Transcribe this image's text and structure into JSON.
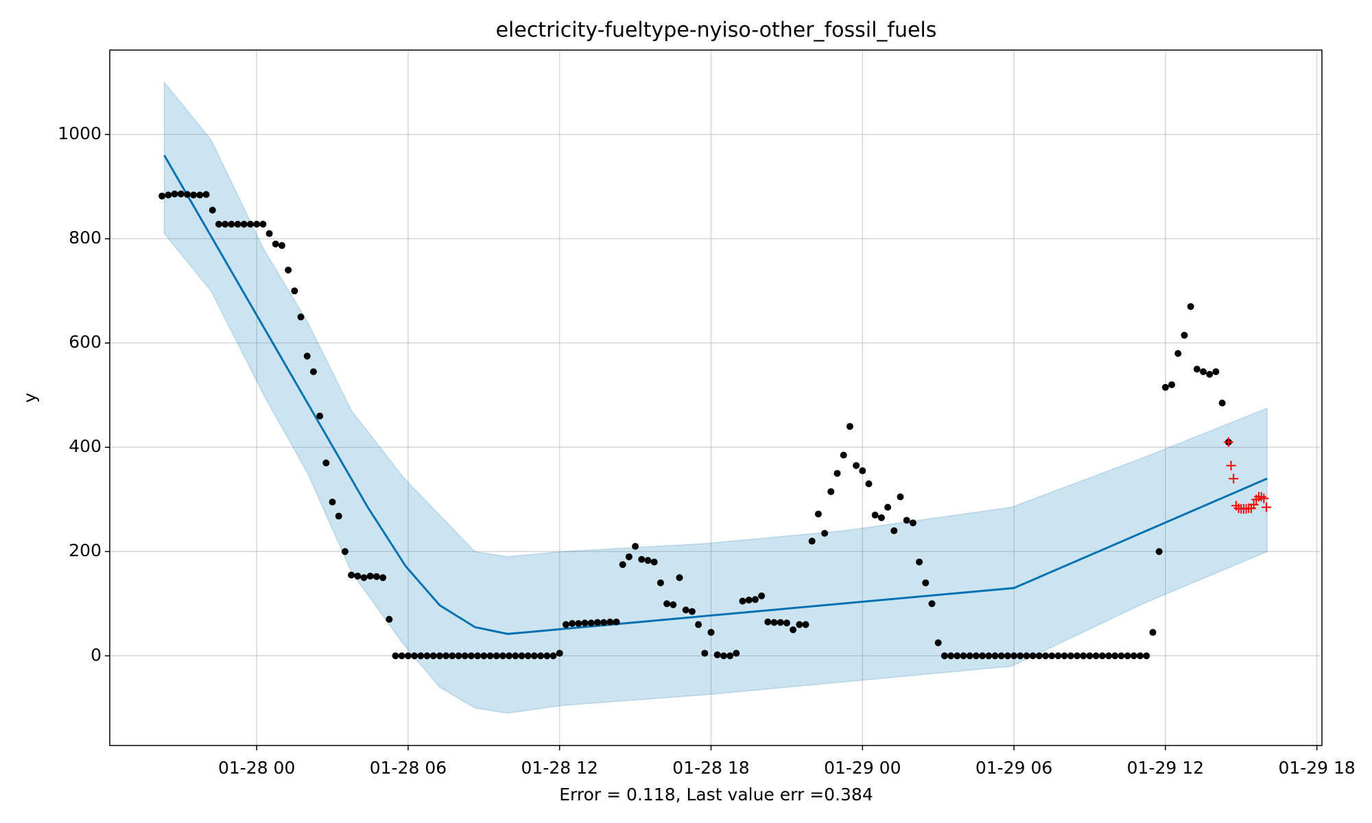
{
  "chart_data": {
    "type": "forecast",
    "title": "electricity-fueltype-nyiso-other_fossil_fuels",
    "xlabel": "Error = 0.118, Last value err =0.384",
    "ylabel": "y",
    "xlim": [
      -5.82,
      42.2
    ],
    "ylim": [
      -172,
      1162
    ],
    "xticks": [
      {
        "value": 0,
        "label": "01-28 00"
      },
      {
        "value": 6,
        "label": "01-28 06"
      },
      {
        "value": 12,
        "label": "01-28 12"
      },
      {
        "value": 18,
        "label": "01-28 18"
      },
      {
        "value": 24,
        "label": "01-29 00"
      },
      {
        "value": 30,
        "label": "01-29 06"
      },
      {
        "value": 36,
        "label": "01-29 12"
      },
      {
        "value": 42,
        "label": "01-29 18"
      }
    ],
    "yticks": [
      0,
      200,
      400,
      600,
      800,
      1000
    ],
    "grid": true,
    "band": {
      "color": "#0072b2",
      "x": [
        -3.66,
        -1.81,
        0.28,
        2.02,
        3.76,
        5.85,
        7.25,
        8.64,
        9.93,
        12.13,
        17.7,
        23.28,
        29.9,
        35.12,
        40.03
      ],
      "upper": [
        1100,
        990,
        780,
        640,
        470,
        340,
        270,
        200,
        190,
        200,
        215,
        240,
        285,
        380,
        475
      ],
      "lower": [
        810,
        700,
        500,
        350,
        160,
        20,
        -60,
        -100,
        -110,
        -95,
        -75,
        -50,
        -20,
        100,
        200
      ]
    },
    "forecast": {
      "color": "#0072b2",
      "x": [
        -3.66,
        4.4,
        5.9,
        7.25,
        8.65,
        9.95,
        30,
        40.03
      ],
      "values": [
        960,
        285,
        172,
        97,
        55,
        42,
        130,
        340
      ]
    },
    "observed": {
      "color": "#000000",
      "x": [
        -3.75,
        -3.5,
        -3.25,
        -3,
        -2.75,
        -2.5,
        -2.25,
        -2,
        -1.75,
        -1.5,
        -1.25,
        -1,
        -0.75,
        -0.5,
        -0.25,
        0,
        0.25,
        0.5,
        0.75,
        1,
        1.25,
        1.5,
        1.75,
        2,
        2.25,
        2.5,
        2.75,
        3,
        3.25,
        3.5,
        3.75,
        4,
        4.25,
        4.5,
        4.75,
        5,
        5.25,
        5.5,
        5.75,
        6,
        6.25,
        6.5,
        6.75,
        7,
        7.25,
        7.5,
        7.75,
        8,
        8.25,
        8.5,
        8.75,
        9,
        9.25,
        9.5,
        9.75,
        10,
        10.25,
        10.5,
        10.75,
        11,
        11.25,
        11.5,
        11.75,
        12,
        12.25,
        12.5,
        12.75,
        13,
        13.25,
        13.5,
        13.75,
        14,
        14.25,
        14.5,
        14.75,
        15,
        15.25,
        15.5,
        15.75,
        16,
        16.25,
        16.5,
        16.75,
        17,
        17.25,
        17.5,
        17.75,
        18,
        18.25,
        18.5,
        18.75,
        19,
        19.25,
        19.5,
        19.75,
        20,
        20.25,
        20.5,
        20.75,
        21,
        21.25,
        21.5,
        21.75,
        22,
        22.25,
        22.5,
        22.75,
        23,
        23.25,
        23.5,
        23.75,
        24,
        24.25,
        24.5,
        24.75,
        25,
        25.25,
        25.5,
        25.75,
        26,
        26.25,
        26.5,
        26.75,
        27,
        27.25,
        27.5,
        27.75,
        28,
        28.25,
        28.5,
        28.75,
        29,
        29.25,
        29.5,
        29.75,
        30,
        30.25,
        30.5,
        30.75,
        31,
        31.25,
        31.5,
        31.75,
        32,
        32.25,
        32.5,
        32.75,
        33,
        33.25,
        33.5,
        33.75,
        34,
        34.25,
        34.5,
        34.75,
        35,
        35.25,
        35.5,
        35.75,
        36,
        36.25,
        36.5,
        36.75,
        37,
        37.25,
        37.5,
        37.75,
        38,
        38.25,
        38.5
      ],
      "values": [
        882,
        884,
        886,
        886,
        885,
        884,
        884,
        885,
        855,
        828,
        828,
        828,
        828,
        828,
        828,
        828,
        828,
        810,
        790,
        787,
        740,
        700,
        650,
        575,
        545,
        460,
        370,
        295,
        268,
        200,
        155,
        153,
        150,
        153,
        152,
        150,
        70,
        0,
        0,
        0,
        0,
        0,
        0,
        0,
        0,
        0,
        0,
        0,
        0,
        0,
        0,
        0,
        0,
        0,
        0,
        0,
        0,
        0,
        0,
        0,
        0,
        0,
        0,
        5,
        60,
        62,
        62,
        63,
        63,
        64,
        64,
        65,
        65,
        175,
        190,
        210,
        185,
        183,
        180,
        140,
        100,
        98,
        150,
        88,
        85,
        60,
        5,
        45,
        2,
        0,
        0,
        5,
        105,
        107,
        108,
        115,
        65,
        64,
        64,
        63,
        50,
        60,
        60,
        220,
        272,
        235,
        315,
        350,
        385,
        440,
        365,
        355,
        330,
        270,
        265,
        285,
        240,
        305,
        260,
        255,
        180,
        140,
        100,
        25,
        0,
        0,
        0,
        0,
        0,
        0,
        0,
        0,
        0,
        0,
        0,
        0,
        0,
        0,
        0,
        0,
        0,
        0,
        0,
        0,
        0,
        0,
        0,
        0,
        0,
        0,
        0,
        0,
        0,
        0,
        0,
        0,
        0,
        45,
        200,
        515,
        520,
        580,
        615,
        670,
        550,
        545,
        540,
        545,
        485,
        410
      ]
    },
    "test": {
      "color": "#ff0000",
      "x": [
        38.5,
        38.6,
        38.7,
        38.8,
        38.9,
        39.0,
        39.1,
        39.2,
        39.3,
        39.4,
        39.5,
        39.6,
        39.7,
        39.8,
        39.9,
        40.0
      ],
      "values": [
        410,
        365,
        340,
        288,
        283,
        282,
        282,
        282,
        283,
        283,
        290,
        300,
        305,
        305,
        302,
        285
      ]
    }
  }
}
